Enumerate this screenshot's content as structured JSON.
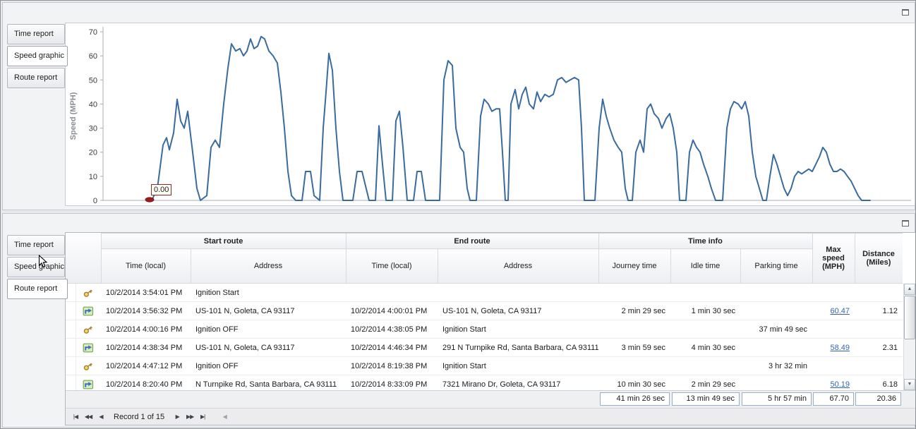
{
  "tabs": {
    "items": [
      {
        "label": "Time report"
      },
      {
        "label": "Speed graphic"
      },
      {
        "label": "Route report"
      }
    ]
  },
  "chart_data": {
    "type": "line",
    "title": "",
    "xlabel": "",
    "ylabel": "Speed (MPH)",
    "ylim": [
      0,
      70
    ],
    "yticks": [
      0,
      10,
      20,
      30,
      40,
      50,
      60,
      70
    ],
    "grid": false,
    "legend": "none",
    "line_color": "#3A6B9F",
    "marker": {
      "x": 66,
      "y": 0,
      "color": "#9E1B1B",
      "label": "0.00"
    },
    "series": [
      {
        "name": "Speed (MPH)",
        "points": [
          [
            62,
            0
          ],
          [
            69,
            0
          ],
          [
            77,
            5
          ],
          [
            85,
            23
          ],
          [
            90,
            26
          ],
          [
            94,
            21
          ],
          [
            100,
            28
          ],
          [
            105,
            42
          ],
          [
            110,
            33
          ],
          [
            115,
            30
          ],
          [
            120,
            37
          ],
          [
            127,
            20
          ],
          [
            133,
            5
          ],
          [
            138,
            0
          ],
          [
            147,
            2
          ],
          [
            153,
            22
          ],
          [
            159,
            25
          ],
          [
            165,
            22
          ],
          [
            171,
            40
          ],
          [
            177,
            55
          ],
          [
            182,
            65
          ],
          [
            188,
            62
          ],
          [
            194,
            63
          ],
          [
            199,
            60
          ],
          [
            204,
            62
          ],
          [
            209,
            67
          ],
          [
            214,
            63
          ],
          [
            219,
            64
          ],
          [
            224,
            68
          ],
          [
            229,
            67
          ],
          [
            235,
            62
          ],
          [
            241,
            60
          ],
          [
            247,
            57
          ],
          [
            252,
            45
          ],
          [
            257,
            30
          ],
          [
            262,
            12
          ],
          [
            267,
            2
          ],
          [
            273,
            0
          ],
          [
            282,
            0
          ],
          [
            287,
            12
          ],
          [
            294,
            12
          ],
          [
            299,
            2
          ],
          [
            307,
            0
          ],
          [
            312,
            30
          ],
          [
            316,
            45
          ],
          [
            320,
            61
          ],
          [
            325,
            54
          ],
          [
            330,
            30
          ],
          [
            335,
            12
          ],
          [
            340,
            0
          ],
          [
            354,
            0
          ],
          [
            360,
            12
          ],
          [
            367,
            12
          ],
          [
            372,
            6
          ],
          [
            377,
            0
          ],
          [
            386,
            0
          ],
          [
            391,
            31
          ],
          [
            396,
            15
          ],
          [
            401,
            0
          ],
          [
            410,
            0
          ],
          [
            415,
            33
          ],
          [
            420,
            37
          ],
          [
            425,
            22
          ],
          [
            431,
            0
          ],
          [
            440,
            0
          ],
          [
            445,
            12
          ],
          [
            451,
            12
          ],
          [
            457,
            0
          ],
          [
            477,
            0
          ],
          [
            483,
            50
          ],
          [
            489,
            58
          ],
          [
            495,
            56
          ],
          [
            500,
            30
          ],
          [
            506,
            22
          ],
          [
            511,
            20
          ],
          [
            516,
            5
          ],
          [
            520,
            0
          ],
          [
            529,
            0
          ],
          [
            535,
            35
          ],
          [
            540,
            42
          ],
          [
            546,
            40
          ],
          [
            551,
            37
          ],
          [
            557,
            38
          ],
          [
            562,
            38
          ],
          [
            566,
            20
          ],
          [
            570,
            0
          ],
          [
            574,
            0
          ],
          [
            578,
            40
          ],
          [
            584,
            46
          ],
          [
            589,
            38
          ],
          [
            594,
            44
          ],
          [
            599,
            47
          ],
          [
            604,
            40
          ],
          [
            610,
            38
          ],
          [
            615,
            45
          ],
          [
            620,
            41
          ],
          [
            626,
            44
          ],
          [
            632,
            43
          ],
          [
            638,
            44
          ],
          [
            644,
            50
          ],
          [
            650,
            51
          ],
          [
            656,
            49
          ],
          [
            662,
            50
          ],
          [
            668,
            51
          ],
          [
            674,
            50
          ],
          [
            678,
            30
          ],
          [
            682,
            0
          ],
          [
            697,
            0
          ],
          [
            703,
            30
          ],
          [
            708,
            42
          ],
          [
            713,
            35
          ],
          [
            718,
            30
          ],
          [
            724,
            25
          ],
          [
            730,
            22
          ],
          [
            735,
            20
          ],
          [
            740,
            5
          ],
          [
            744,
            0
          ],
          [
            750,
            0
          ],
          [
            755,
            20
          ],
          [
            761,
            25
          ],
          [
            766,
            20
          ],
          [
            771,
            38
          ],
          [
            776,
            40
          ],
          [
            781,
            36
          ],
          [
            787,
            34
          ],
          [
            792,
            30
          ],
          [
            798,
            34
          ],
          [
            803,
            36
          ],
          [
            808,
            30
          ],
          [
            813,
            20
          ],
          [
            817,
            0
          ],
          [
            826,
            0
          ],
          [
            831,
            20
          ],
          [
            836,
            25
          ],
          [
            841,
            22
          ],
          [
            846,
            20
          ],
          [
            851,
            15
          ],
          [
            857,
            10
          ],
          [
            862,
            5
          ],
          [
            868,
            0
          ],
          [
            878,
            0
          ],
          [
            884,
            30
          ],
          [
            889,
            38
          ],
          [
            894,
            41
          ],
          [
            900,
            40
          ],
          [
            905,
            38
          ],
          [
            910,
            41
          ],
          [
            915,
            35
          ],
          [
            920,
            20
          ],
          [
            925,
            10
          ],
          [
            930,
            5
          ],
          [
            935,
            0
          ],
          [
            940,
            0
          ],
          [
            945,
            10
          ],
          [
            950,
            19
          ],
          [
            955,
            15
          ],
          [
            960,
            10
          ],
          [
            965,
            5
          ],
          [
            970,
            2
          ],
          [
            975,
            5
          ],
          [
            980,
            10
          ],
          [
            985,
            12
          ],
          [
            990,
            11
          ],
          [
            995,
            12
          ],
          [
            1000,
            13
          ],
          [
            1005,
            12
          ],
          [
            1010,
            15
          ],
          [
            1015,
            18
          ],
          [
            1020,
            22
          ],
          [
            1025,
            20
          ],
          [
            1030,
            15
          ],
          [
            1035,
            12
          ],
          [
            1040,
            12
          ],
          [
            1045,
            13
          ],
          [
            1050,
            12
          ],
          [
            1055,
            10
          ],
          [
            1060,
            8
          ],
          [
            1065,
            5
          ],
          [
            1070,
            2
          ],
          [
            1075,
            0
          ],
          [
            1087,
            0
          ]
        ]
      }
    ]
  },
  "grid": {
    "group_headers": [
      "Start route",
      "End route",
      "Time info"
    ],
    "column_headers": {
      "start_time": "Time (local)",
      "start_address": "Address",
      "end_time": "Time (local)",
      "end_address": "Address",
      "journey": "Journey time",
      "idle": "Idle time",
      "parking": "Parking time",
      "max_speed": "Max speed (MPH)",
      "distance": "Distance (Miles)"
    },
    "rows": [
      {
        "icon": "key",
        "start_time": "10/2/2014 3:54:01 PM",
        "start_address": "Ignition Start",
        "end_time": "",
        "end_address": "",
        "journey": "",
        "idle": "",
        "parking": "",
        "max_speed": "",
        "distance": ""
      },
      {
        "icon": "route",
        "start_time": "10/2/2014 3:56:32 PM",
        "start_address": "US-101 N, Goleta, CA 93117",
        "end_time": "10/2/2014 4:00:01 PM",
        "end_address": "US-101 N, Goleta, CA 93117",
        "journey": "2 min 29 sec",
        "idle": "1 min 30 sec",
        "parking": "",
        "max_speed": "60.47",
        "distance": "1.12"
      },
      {
        "icon": "key",
        "start_time": "10/2/2014 4:00:16 PM",
        "start_address": "Ignition OFF",
        "end_time": "10/2/2014 4:38:05 PM",
        "end_address": "Ignition Start",
        "journey": "",
        "idle": "",
        "parking": "37 min 49 sec",
        "max_speed": "",
        "distance": ""
      },
      {
        "icon": "route",
        "start_time": "10/2/2014 4:38:34 PM",
        "start_address": "US-101 N, Goleta, CA 93117",
        "end_time": "10/2/2014 4:46:34 PM",
        "end_address": "291 N Turnpike Rd, Santa Barbara, CA 93111",
        "journey": "3 min 59 sec",
        "idle": "4 min 30 sec",
        "parking": "",
        "max_speed": "58.49",
        "distance": "2.31"
      },
      {
        "icon": "key",
        "start_time": "10/2/2014 4:47:12 PM",
        "start_address": "Ignition OFF",
        "end_time": "10/2/2014 8:19:38 PM",
        "end_address": "Ignition Start",
        "journey": "",
        "idle": "",
        "parking": "3 hr 32 min",
        "max_speed": "",
        "distance": ""
      },
      {
        "icon": "route",
        "start_time": "10/2/2014 8:20:40 PM",
        "start_address": "N Turnpike Rd, Santa Barbara, CA 93111",
        "end_time": "10/2/2014 8:33:09 PM",
        "end_address": "7321 Mirano Dr, Goleta, CA 93117",
        "journey": "10 min 30 sec",
        "idle": "2 min 29 sec",
        "parking": "",
        "max_speed": "50.19",
        "distance": "6.18"
      }
    ],
    "summary": {
      "journey": "41 min 26 sec",
      "idle": "13 min 49 sec",
      "parking": "5 hr 57 min",
      "max_speed": "67.70",
      "distance": "20.36"
    },
    "navigator": {
      "first": "|◀",
      "prev_page": "◀◀",
      "prev": "◀",
      "record_text": "Record 1 of 15",
      "next": "▶",
      "next_page": "▶▶",
      "last": "▶|",
      "hscroll_left": "◀"
    }
  },
  "scrollbar": {
    "up": "▲",
    "down": "▼"
  }
}
